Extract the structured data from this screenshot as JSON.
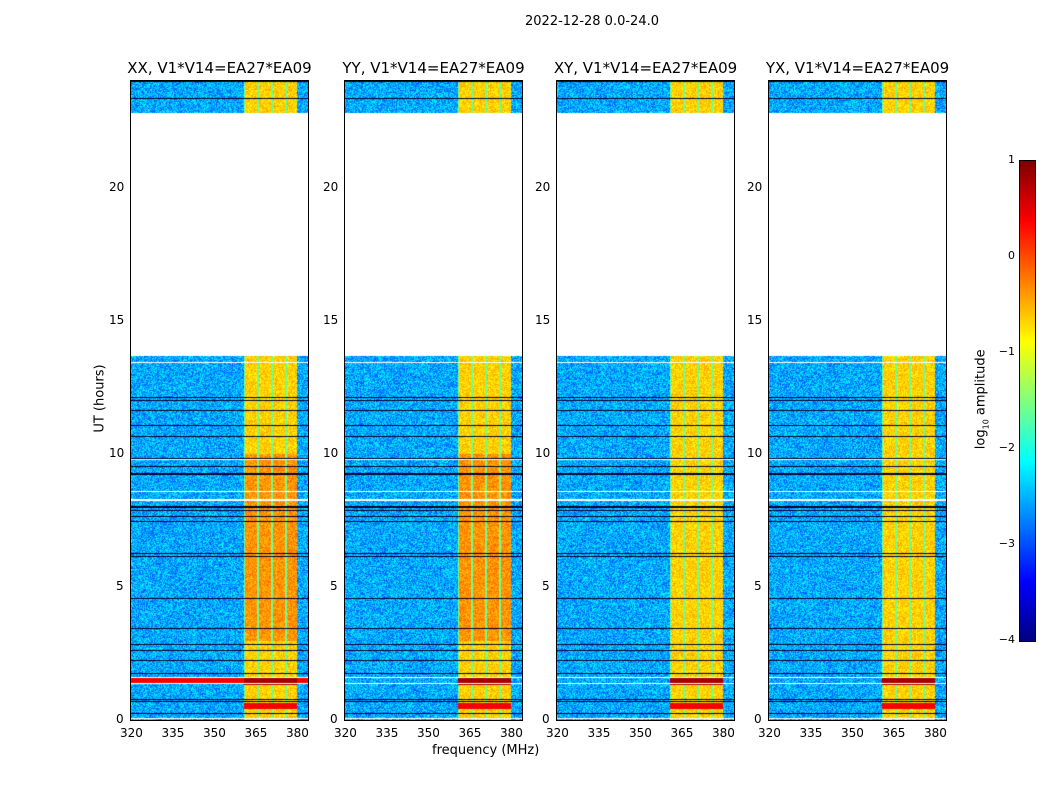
{
  "chart_data": {
    "type": "heatmap",
    "title": "2022-12-28 0.0-24.0",
    "xlabel": "frequency (MHz)",
    "ylabel": "UT (hours)",
    "xlim": [
      320,
      384
    ],
    "ylim": [
      0,
      24
    ],
    "xticks": [
      320,
      335,
      350,
      365,
      380
    ],
    "yticks": [
      0,
      5,
      10,
      15,
      20
    ],
    "panels": [
      {
        "title": "XX, V1*V14=EA27*EA09",
        "strong_rfi_hours": [
          1.5
        ]
      },
      {
        "title": "YY, V1*V14=EA27*EA09",
        "strong_rfi_hours": []
      },
      {
        "title": "XY, V1*V14=EA27*EA09",
        "strong_rfi_hours": []
      },
      {
        "title": "YX, V1*V14=EA27*EA09",
        "strong_rfi_hours": []
      }
    ],
    "data_time_ranges_hours": [
      [
        0,
        13.7
      ],
      [
        22.8,
        24
      ]
    ],
    "bright_band_mhz": [
      360.5,
      380
    ],
    "colorbar": {
      "label": "log10 amplitude",
      "range": [
        -4,
        1
      ],
      "ticks": [
        1,
        0,
        -1,
        -2,
        -3,
        -4
      ],
      "tick_labels": [
        "1",
        "0",
        "−1",
        "−2",
        "−3",
        "−4"
      ],
      "colormap": "jet"
    }
  }
}
